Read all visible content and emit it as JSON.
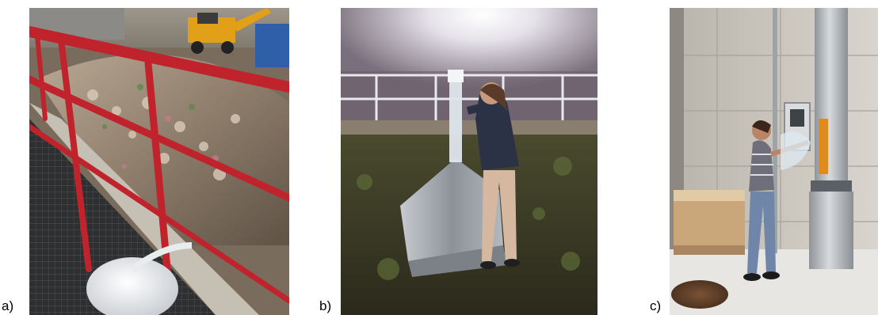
{
  "figure": {
    "panels": [
      {
        "label": "a)"
      },
      {
        "label": "b)"
      },
      {
        "label": "c)"
      }
    ]
  }
}
